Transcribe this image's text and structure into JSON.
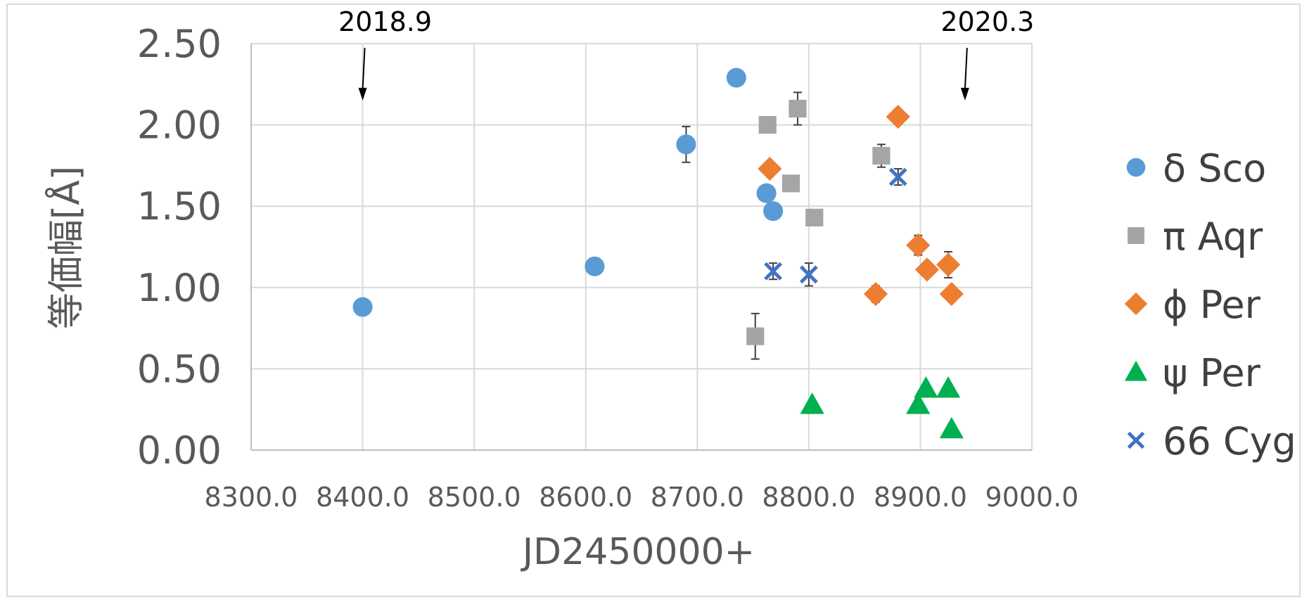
{
  "chart_data": {
    "type": "scatter",
    "title": "",
    "xlabel": "JD2450000+",
    "ylabel": "等価幅[Å]",
    "xlim": [
      8300,
      9000
    ],
    "ylim": [
      0,
      2.5
    ],
    "x_ticks": [
      8300,
      8400,
      8500,
      8600,
      8700,
      8800,
      8900,
      9000
    ],
    "x_tick_labels": [
      "8300.0",
      "8400.0",
      "8500.0",
      "8600.0",
      "8700.0",
      "8800.0",
      "8900.0",
      "9000.0"
    ],
    "y_ticks": [
      0,
      0.5,
      1,
      1.5,
      2,
      2.5
    ],
    "y_tick_labels": [
      "0.00",
      "0.50",
      "1.00",
      "1.50",
      "2.00",
      "2.50"
    ],
    "grid": true,
    "legend_position": "right",
    "annotations": [
      {
        "text": "2018.9",
        "x": 8400,
        "y": 2.15
      },
      {
        "text": "2020.3",
        "x": 8940,
        "y": 2.15
      }
    ],
    "series": [
      {
        "name": "δ Sco",
        "marker": "circle",
        "color": "#5b9bd5",
        "points": [
          {
            "x": 8400,
            "y": 0.88
          },
          {
            "x": 8608,
            "y": 1.13
          },
          {
            "x": 8690,
            "y": 1.88,
            "err": 0.11
          },
          {
            "x": 8735,
            "y": 2.29
          },
          {
            "x": 8762,
            "y": 1.58
          },
          {
            "x": 8768,
            "y": 1.47
          }
        ]
      },
      {
        "name": "π Aqr",
        "marker": "square",
        "color": "#a5a5a5",
        "points": [
          {
            "x": 8752,
            "y": 0.7,
            "err": 0.14
          },
          {
            "x": 8763,
            "y": 2.0
          },
          {
            "x": 8784,
            "y": 1.64
          },
          {
            "x": 8790,
            "y": 2.1,
            "err": 0.1
          },
          {
            "x": 8805,
            "y": 1.43
          },
          {
            "x": 8865,
            "y": 1.81,
            "err": 0.07
          }
        ]
      },
      {
        "name": "ϕ Per",
        "marker": "diamond",
        "color": "#ed7d31",
        "points": [
          {
            "x": 8765,
            "y": 1.73
          },
          {
            "x": 8860,
            "y": 0.96,
            "err": 0.05
          },
          {
            "x": 8880,
            "y": 2.05
          },
          {
            "x": 8898,
            "y": 1.26,
            "err": 0.06
          },
          {
            "x": 8906,
            "y": 1.11
          },
          {
            "x": 8925,
            "y": 1.14,
            "err": 0.08
          },
          {
            "x": 8928,
            "y": 0.96
          }
        ]
      },
      {
        "name": "ψ Per",
        "marker": "triangle",
        "color": "#00b050",
        "points": [
          {
            "x": 8803,
            "y": 0.28
          },
          {
            "x": 8898,
            "y": 0.28
          },
          {
            "x": 8905,
            "y": 0.38
          },
          {
            "x": 8925,
            "y": 0.38
          },
          {
            "x": 8928,
            "y": 0.13
          }
        ]
      },
      {
        "name": "66 Cyg",
        "marker": "x",
        "color": "#4472c4",
        "points": [
          {
            "x": 8768,
            "y": 1.1,
            "err": 0.05
          },
          {
            "x": 8800,
            "y": 1.08,
            "err": 0.07
          },
          {
            "x": 8880,
            "y": 1.68,
            "err": 0.05
          }
        ]
      }
    ]
  }
}
